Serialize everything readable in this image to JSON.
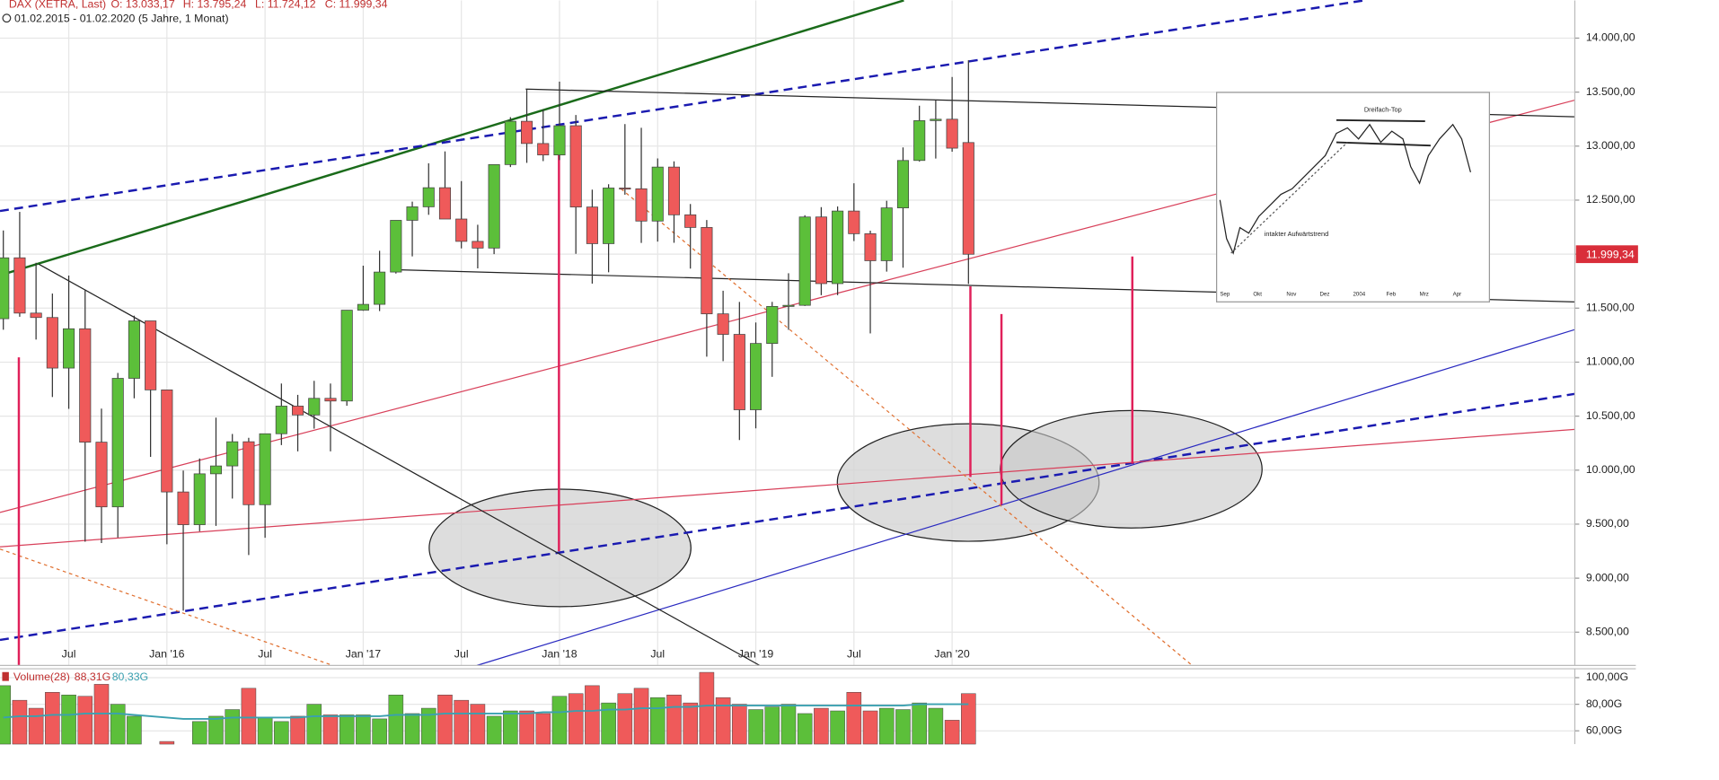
{
  "chart_data": {
    "type": "candlestick",
    "title": "DAX (XETRA, Last)",
    "ohlc_header": [
      "O: 13.033,17",
      "H: 13.795,24",
      "L: 11.724,12",
      "C: 11.999,34"
    ],
    "period": "01.02.2015 - 01.02.2020 (5 Jahre, 1 Monat)",
    "categories": [
      null,
      null,
      null,
      null,
      "Jul",
      null,
      null,
      null,
      null,
      null,
      "Jan '16",
      null,
      null,
      null,
      null,
      null,
      "Jul",
      null,
      null,
      null,
      null,
      null,
      "Jan '17",
      null,
      null,
      null,
      null,
      null,
      "Jul",
      null,
      null,
      null,
      null,
      null,
      "Jan '18",
      null,
      null,
      null,
      null,
      null,
      "Jul",
      null,
      null,
      null,
      null,
      null,
      "Jan '19",
      null,
      null,
      null,
      null,
      null,
      "Jul",
      null,
      null,
      null,
      null,
      null,
      "Jan '20",
      null
    ],
    "open": [
      11402,
      11966,
      11454,
      11413,
      10945,
      11309,
      10259,
      9660,
      10850,
      11382,
      10743,
      9798,
      9495,
      9966,
      10039,
      10263,
      9680,
      10337,
      10593,
      10511,
      10665,
      10640,
      11481,
      11535,
      11834,
      12313,
      12438,
      12615,
      12325,
      12118,
      12056,
      12829,
      13230,
      13024,
      12918,
      13189,
      12436,
      12097,
      12612,
      12605,
      12306,
      12806,
      12364,
      12247,
      11447,
      11257,
      10559,
      11173,
      11516,
      11526,
      12344,
      11727,
      12399,
      12189,
      11939,
      12428,
      12867,
      13236,
      13249,
      13033
    ],
    "high": [
      12219,
      12391,
      11920,
      11635,
      11802,
      11670,
      10570,
      10900,
      11430,
      11382,
      10743,
      9996,
      10108,
      10486,
      10335,
      10300,
      10337,
      10802,
      10697,
      10827,
      10802,
      11482,
      11893,
      12031,
      12313,
      12486,
      12841,
      12951,
      12676,
      12272,
      12829,
      13268,
      13526,
      13340,
      13597,
      13288,
      12597,
      12647,
      13204,
      13170,
      12886,
      12859,
      12464,
      12316,
      11661,
      11557,
      11367,
      11558,
      11823,
      12360,
      12435,
      12441,
      12656,
      12217,
      12494,
      12988,
      13374,
      13426,
      13640,
      13795
    ],
    "low": [
      11300,
      11420,
      11209,
      10677,
      10567,
      9338,
      9325,
      9376,
      10665,
      10123,
      9314,
      8699,
      9434,
      9484,
      9737,
      9214,
      9374,
      10232,
      10174,
      10384,
      10174,
      10596,
      11475,
      11473,
      11820,
      11979,
      12364,
      12325,
      12053,
      11868,
      12000,
      12806,
      12845,
      12861,
      12871,
      12003,
      11727,
      11832,
      12550,
      12104,
      12116,
      12105,
      11866,
      11051,
      11009,
      10279,
      10387,
      10864,
      11299,
      11520,
      11620,
      11620,
      12121,
      11266,
      11838,
      11874,
      12857,
      12885,
      12948,
      11724
    ],
    "close": [
      11966,
      11454,
      11413,
      10945,
      11309,
      10259,
      9660,
      10850,
      11382,
      10743,
      9798,
      9495,
      9966,
      10039,
      10263,
      9680,
      10337,
      10593,
      10511,
      10665,
      10640,
      11481,
      11535,
      11834,
      12313,
      12438,
      12615,
      12325,
      12118,
      12056,
      12829,
      13230,
      13024,
      12918,
      13189,
      12436,
      12097,
      12612,
      12605,
      12306,
      12806,
      12364,
      12247,
      11447,
      11257,
      10559,
      11173,
      11516,
      11526,
      12344,
      11727,
      12399,
      12189,
      11939,
      12428,
      12867,
      13236,
      13249,
      12981,
      11999
    ],
    "up_color": "#5cbf3a",
    "down_color": "#ef5a5a",
    "ylim": [
      8192,
      14349
    ],
    "yticks": [
      {
        "value": 8500,
        "label": "8.500,00"
      },
      {
        "value": 9000,
        "label": "9.000,00"
      },
      {
        "value": 9500,
        "label": "9.500,00"
      },
      {
        "value": 10000,
        "label": "10.000,00"
      },
      {
        "value": 10500,
        "label": "10.500,00"
      },
      {
        "value": 11000,
        "label": "11.000,00"
      },
      {
        "value": 11500,
        "label": "11.500,00"
      },
      {
        "value": 12000,
        "label": "12.000,00"
      },
      {
        "value": 12500,
        "label": "12.500,00"
      },
      {
        "value": 13000,
        "label": "13.000,00"
      },
      {
        "value": 13500,
        "label": "13.500,00"
      },
      {
        "value": 14000,
        "label": "14.000,00"
      }
    ],
    "grid": true,
    "last_price": {
      "value": 11999.34,
      "label": "11.999,34"
    },
    "inset": {
      "labels": [
        "Dreifach-Top",
        "intakter Aufwärtstrend"
      ],
      "months": [
        "Sep",
        "Okt",
        "Nov",
        "Dez",
        "2004",
        "Feb",
        "Mrz",
        "Apr"
      ]
    },
    "volume": {
      "title": "Volume(28)",
      "last_label": "88,31G",
      "ma_label": "80,33G",
      "values": [
        94,
        83,
        77,
        89,
        87,
        86,
        95,
        80,
        71,
        50,
        52,
        50,
        67,
        71,
        76,
        92,
        70,
        67,
        71,
        80,
        72,
        72,
        72,
        69,
        87,
        73,
        77,
        87,
        83,
        80,
        71,
        75,
        75,
        73,
        86,
        88,
        94,
        81,
        88,
        92,
        85,
        87,
        81,
        104,
        85,
        80,
        76,
        78,
        80,
        73,
        77,
        75,
        89,
        75,
        77,
        76,
        81,
        77,
        68,
        88
      ],
      "ma": [
        70,
        71,
        71,
        72,
        72,
        73,
        73,
        73,
        72,
        71,
        70,
        69,
        69,
        69,
        70,
        70,
        70,
        70,
        70,
        71,
        71,
        71,
        71,
        71,
        72,
        72,
        72,
        73,
        73,
        73,
        73,
        73,
        73,
        74,
        74,
        75,
        75,
        76,
        76,
        77,
        77,
        78,
        78,
        79,
        79,
        79,
        79,
        79,
        79,
        79,
        79,
        79,
        79,
        79,
        79,
        79,
        80,
        80,
        80,
        80
      ],
      "ma_color": "#3aa0b0",
      "ylim": [
        50,
        106.7
      ],
      "yticks": [
        {
          "value": 60,
          "label": "60,00G"
        },
        {
          "value": 80,
          "label": "80,00G"
        },
        {
          "value": 100,
          "label": "100,00G"
        }
      ]
    }
  }
}
